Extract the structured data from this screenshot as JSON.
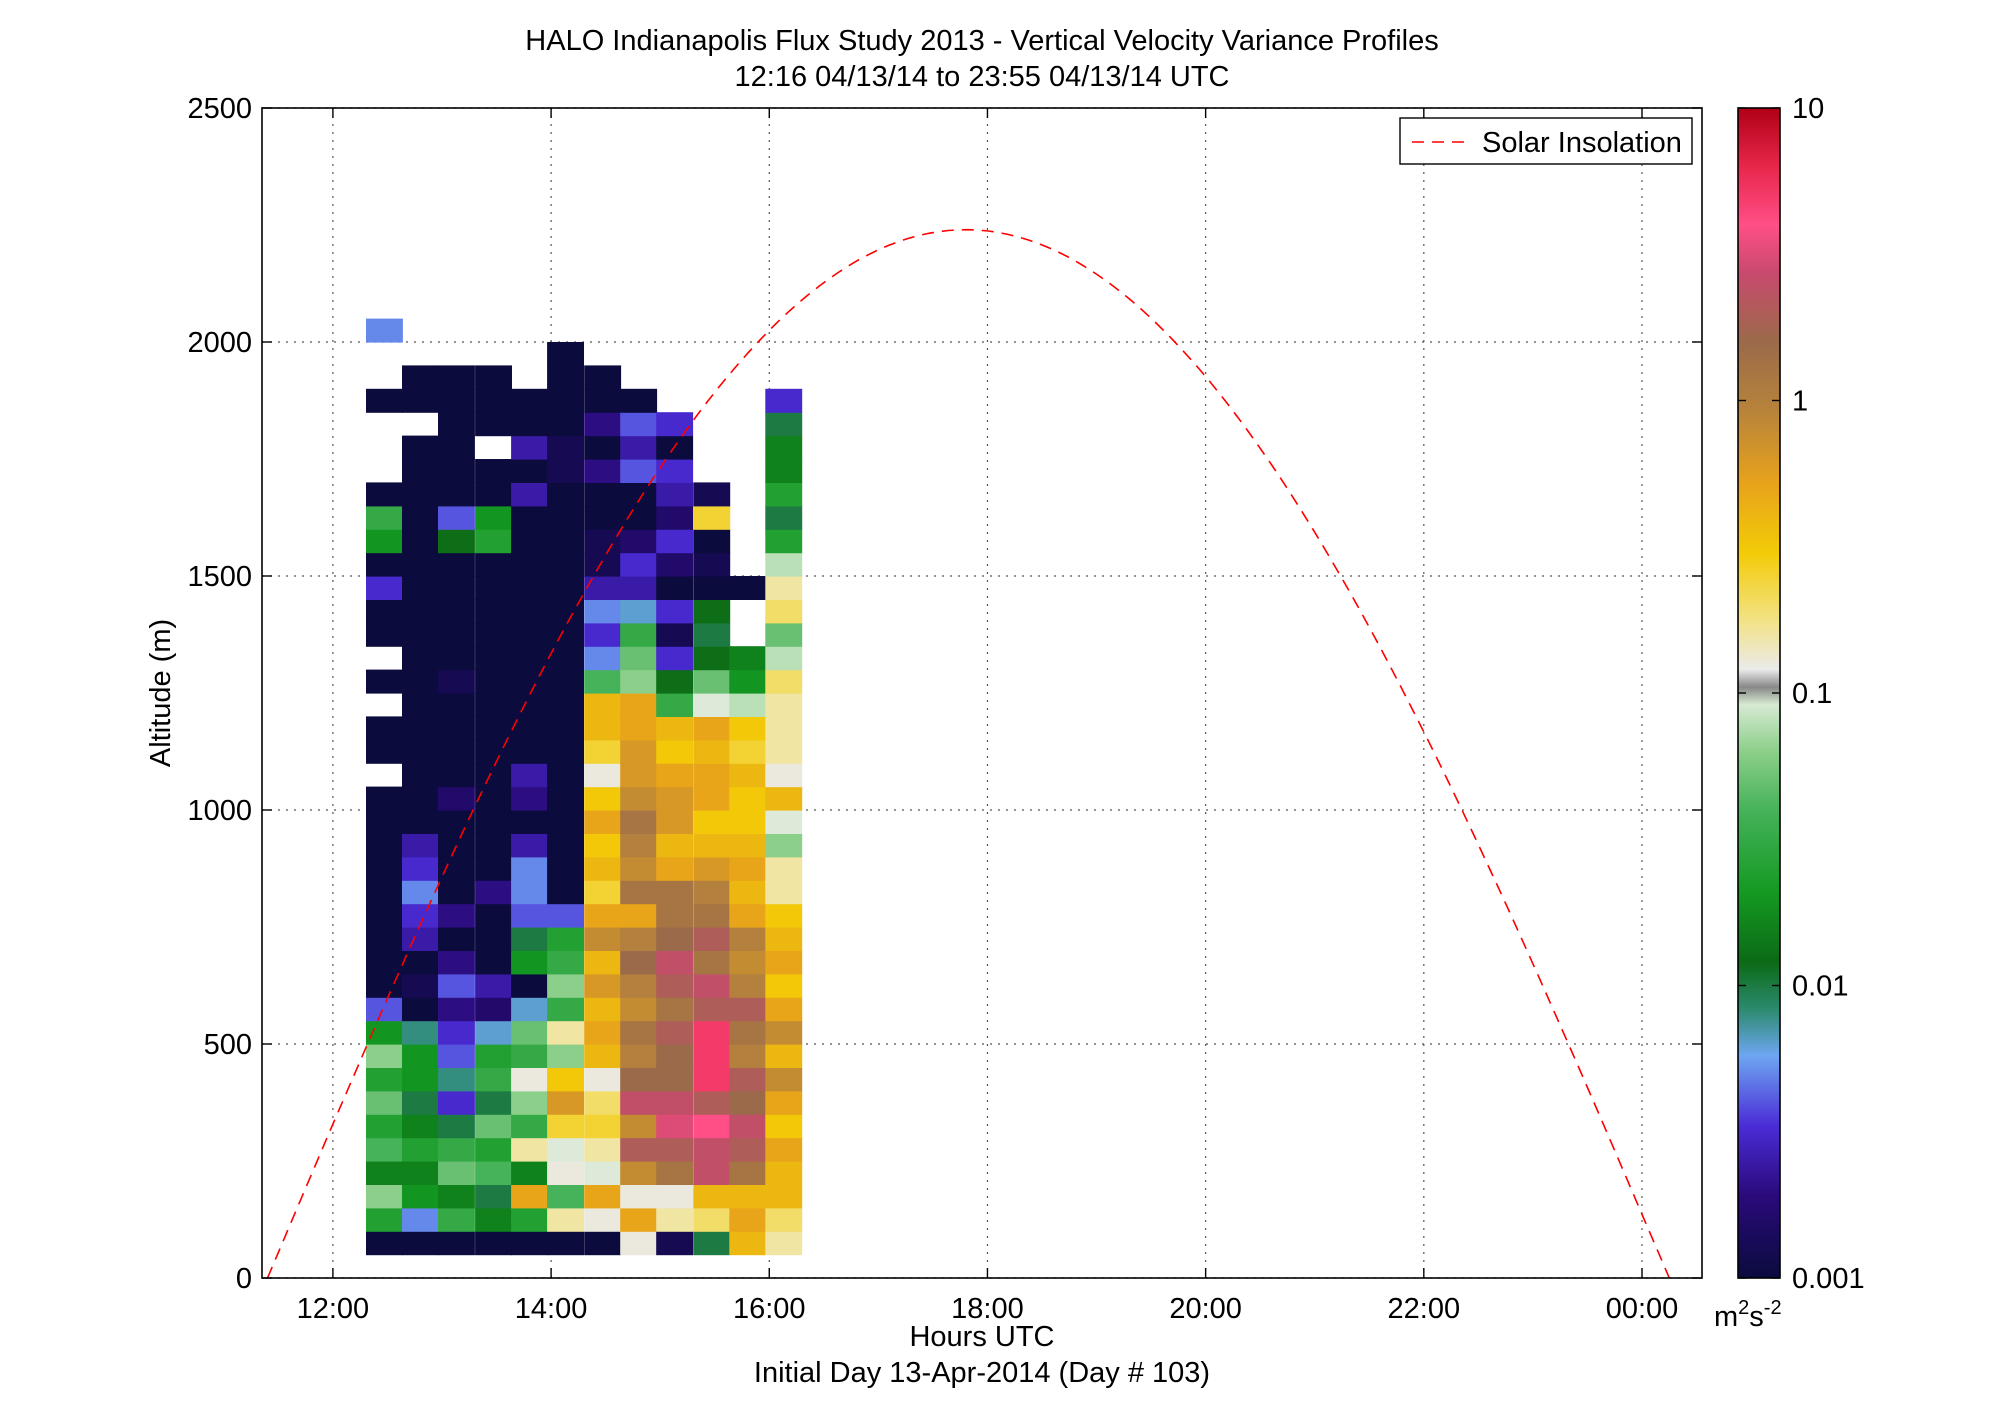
{
  "chart_data": {
    "type": "heatmap",
    "title": "HALO Indianapolis Flux Study 2013 - Vertical Velocity Variance Profiles",
    "subtitle": "12:16 04/13/14 to 23:55 04/13/14  UTC",
    "xlabel": "Hours UTC",
    "xlabel2": "Initial Day 13-Apr-2014 (Day # 103)",
    "ylabel": "Altitude (m)",
    "xlim": [
      11.35,
      24.55
    ],
    "ylim": [
      0,
      2500
    ],
    "x_ticks": [
      12,
      14,
      16,
      18,
      20,
      22,
      24
    ],
    "x_tick_labels": [
      "12:00",
      "14:00",
      "16:00",
      "18:00",
      "20:00",
      "22:00",
      "00:00"
    ],
    "y_ticks": [
      0,
      500,
      1000,
      1500,
      2000,
      2500
    ],
    "y_tick_labels": [
      "0",
      "500",
      "1000",
      "1500",
      "2000",
      "2500"
    ],
    "grid": true,
    "colorbar": {
      "scale": "log",
      "range": [
        0.001,
        10
      ],
      "ticks": [
        0.001,
        0.01,
        0.1,
        1,
        10
      ],
      "tick_labels": [
        "0.001",
        "0.01",
        "0.1",
        "1",
        "10"
      ],
      "unit_base": "m",
      "unit_sup1": "2",
      "unit_mid": "s",
      "unit_sup2": "-2"
    },
    "legend": {
      "position": "top-right",
      "entries": [
        "Solar Insolation"
      ]
    },
    "solar_insolation": {
      "style": "dashed",
      "color": "#ff0000",
      "x_start": 11.4,
      "x_end": 24.25,
      "peak_x": 17.8,
      "peak_altitude": 2240
    },
    "cell_width_hours": 0.333,
    "cell_height_m": 50,
    "profiles": [
      {
        "time": 12.47,
        "log_variance": [
          -3.0,
          -1.6,
          -1.2,
          -1.8,
          -1.4,
          -1.6,
          -1.3,
          -1.6,
          -1.2,
          -1.7,
          -2.4,
          -3.0,
          -3.0,
          -3.0,
          -3.0,
          -3.0,
          -3.0,
          -3.0,
          -3.0,
          -3.0,
          null,
          -3.0,
          -3.0,
          null,
          -3.0,
          null,
          -3.0,
          -3.0,
          -2.5,
          -3.0,
          -1.7,
          -1.5,
          -3.0,
          null,
          null,
          null,
          -3.0,
          null,
          null,
          -2.3
        ],
        "top": 1725
      },
      {
        "time": 12.8,
        "log_variance": [
          -3.0,
          -2.3,
          -1.7,
          -1.8,
          -1.6,
          -1.8,
          -2.0,
          -1.7,
          -1.7,
          -2.1,
          -3.0,
          -2.9,
          -3.0,
          -2.6,
          -2.5,
          -2.3,
          -2.5,
          -2.6,
          -3.0,
          -3.0,
          -3.0,
          -3.0,
          -3.0,
          -3.0,
          -3.0,
          -3.0,
          -3.0,
          -3.0,
          -3.0,
          -3.0,
          -3.0,
          -3.0,
          -3.0,
          -3.0,
          -3.0,
          null,
          -3.0,
          -3.0
        ],
        "top": 1700
      },
      {
        "time": 13.13,
        "log_variance": [
          -3.0,
          -1.5,
          -1.8,
          -1.3,
          -1.5,
          -2.0,
          -2.5,
          -2.1,
          -2.4,
          -2.5,
          -2.7,
          -2.4,
          -2.7,
          -3.0,
          -2.7,
          -3.0,
          -3.0,
          -3.0,
          -3.0,
          -2.8,
          -3.0,
          -3.0,
          -3.0,
          -3.0,
          -2.9,
          -3.0,
          -3.0,
          -3.0,
          -3.0,
          -3.0,
          -1.9,
          -2.4,
          -3.0,
          -3.0,
          -3.0,
          -3.0,
          -3.0,
          -3.0
        ],
        "top": 1725
      },
      {
        "time": 13.47,
        "log_variance": [
          -3.0,
          -1.8,
          -2.0,
          -1.4,
          -1.6,
          -1.3,
          -2.0,
          -1.5,
          -1.6,
          -2.2,
          -2.8,
          -2.6,
          -3.0,
          -3.0,
          -3.0,
          -2.7,
          -3.0,
          -3.0,
          -3.0,
          -3.0,
          -3.0,
          -3.0,
          -3.0,
          -3.0,
          -3.0,
          -3.0,
          -3.0,
          -3.0,
          -3.0,
          -3.0,
          -1.6,
          -1.7,
          -3.0,
          -3.0,
          null,
          -3.0,
          -3.0,
          -3.0
        ],
        "top": 1725
      },
      {
        "time": 13.8,
        "log_variance": [
          -3.0,
          -1.6,
          -0.3,
          -1.8,
          -0.8,
          -1.5,
          -1.2,
          -0.9,
          -1.5,
          -1.3,
          -2.2,
          -3.0,
          -1.7,
          -2.0,
          -2.4,
          -2.3,
          -2.3,
          -2.6,
          -3.0,
          -2.7,
          -2.6,
          -3.0,
          -3.0,
          -3.0,
          -3.0,
          -3.0,
          -3.0,
          -3.0,
          -3.0,
          -3.0,
          -3.0,
          -3.0,
          -2.6,
          -3.0,
          -2.6,
          -3.0,
          -3.0
        ],
        "top": 1700
      },
      {
        "time": 14.13,
        "log_variance": [
          -3.0,
          -0.8,
          -1.4,
          -0.9,
          -1.0,
          -0.6,
          -0.2,
          -0.5,
          -1.2,
          -0.8,
          -1.5,
          -1.2,
          -1.5,
          -1.6,
          -2.4,
          -3.0,
          -3.0,
          -3.0,
          -3.0,
          -3.0,
          -3.0,
          -3.0,
          -3.0,
          -3.0,
          -3.0,
          -3.0,
          -3.0,
          -3.0,
          -3.0,
          -3.0,
          -3.0,
          -3.0,
          -3.0,
          -2.9,
          -2.9,
          -3.0,
          -3.0,
          -3.0,
          -3.0
        ],
        "top": 1825
      },
      {
        "time": 14.47,
        "log_variance": [
          -3.0,
          -0.9,
          -0.3,
          -1.0,
          -0.8,
          -0.6,
          -0.7,
          -0.9,
          -0.4,
          -0.3,
          -0.4,
          -0.2,
          -0.4,
          -0.1,
          -0.3,
          -0.6,
          -0.4,
          -0.5,
          -0.3,
          -0.5,
          -0.9,
          -0.6,
          -0.4,
          -0.4,
          -1.4,
          -2.3,
          -2.5,
          -2.3,
          -2.6,
          -2.9,
          -2.9,
          -3.0,
          -3.0,
          -2.7,
          -3.0,
          -2.7,
          -3.0,
          -3.0
        ],
        "top": 1800
      },
      {
        "time": 14.8,
        "log_variance": [
          -0.9,
          -0.3,
          -0.9,
          -0.1,
          0.3,
          -0.1,
          0.4,
          0.2,
          0.0,
          0.1,
          -0.1,
          0.0,
          0.2,
          0.0,
          -0.3,
          0.1,
          -0.1,
          0.0,
          0.1,
          -0.1,
          -0.2,
          -0.2,
          -0.3,
          -0.3,
          -1.2,
          -1.3,
          -1.5,
          -2.2,
          -2.6,
          -2.5,
          -2.8,
          -3.0,
          -3.0,
          -2.4,
          -2.6,
          -2.4,
          -3.0
        ],
        "top": 1750
      },
      {
        "time": 15.13,
        "log_variance": [
          -2.9,
          -0.8,
          -0.9,
          0.1,
          0.3,
          0.5,
          0.4,
          0.2,
          0.2,
          0.3,
          0.1,
          0.3,
          0.4,
          0.2,
          0.1,
          0.1,
          -0.3,
          -0.4,
          -0.2,
          -0.2,
          -0.3,
          -0.5,
          -0.4,
          -1.5,
          -1.9,
          -2.5,
          -2.9,
          -2.5,
          -3.0,
          -2.8,
          -2.5,
          -2.8,
          -2.6,
          -2.5,
          -3.0,
          -2.5
        ],
        "top": 1800
      },
      {
        "time": 15.47,
        "log_variance": [
          -2.0,
          -0.7,
          -0.4,
          0.4,
          0.4,
          0.6,
          0.3,
          0.7,
          0.7,
          0.7,
          0.3,
          0.4,
          0.1,
          0.3,
          0.1,
          0.0,
          -0.2,
          -0.4,
          -0.5,
          -0.3,
          -0.3,
          -0.4,
          -0.3,
          -1.0,
          -1.3,
          -1.9,
          -2.0,
          -1.9,
          -3.0,
          -2.9,
          -3.0,
          -0.6,
          -2.9
        ],
        "top": 1650
      },
      {
        "time": 15.8,
        "log_variance": [
          -0.4,
          -0.3,
          -0.4,
          0.1,
          0.3,
          0.4,
          0.2,
          0.3,
          0.0,
          0.1,
          0.3,
          0.0,
          -0.1,
          0.0,
          -0.3,
          -0.4,
          -0.3,
          -0.4,
          -0.5,
          -0.5,
          -0.4,
          -0.6,
          -0.5,
          -1.1,
          -1.7,
          -1.8,
          null,
          null,
          -3.0
        ],
        "top": 1475
      },
      {
        "time": 16.13,
        "log_variance": [
          -0.8,
          -0.7,
          -0.4,
          -0.4,
          -0.3,
          -0.5,
          -0.3,
          -0.1,
          -0.4,
          -0.1,
          -0.3,
          -0.5,
          -0.3,
          -0.4,
          -0.5,
          -0.8,
          -0.8,
          -1.2,
          -1.0,
          -0.4,
          -0.9,
          -0.8,
          -0.8,
          -0.8,
          -0.7,
          -1.1,
          -1.3,
          -0.7,
          -0.8,
          -1.1,
          -1.6,
          -2.0,
          -1.6,
          -1.8,
          -1.8,
          -2.0,
          -2.5
        ],
        "top": 1475
      }
    ]
  }
}
